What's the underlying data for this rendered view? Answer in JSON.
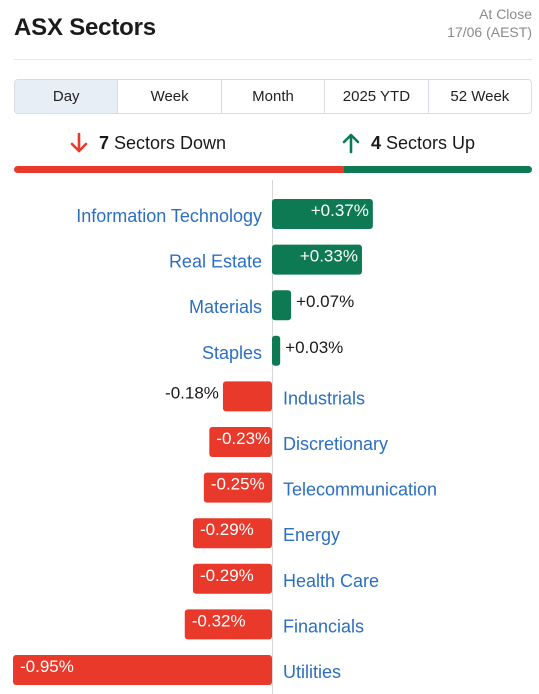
{
  "header": {
    "title": "ASX Sectors",
    "status": "At Close",
    "timestamp": "17/06 (AEST)"
  },
  "tabs": [
    {
      "label": "Day",
      "active": true
    },
    {
      "label": "Week",
      "active": false
    },
    {
      "label": "Month",
      "active": false
    },
    {
      "label": "2025 YTD",
      "active": false
    },
    {
      "label": "52 Week",
      "active": false
    }
  ],
  "summary": {
    "down_count": "7",
    "down_label": "Sectors Down",
    "up_count": "4",
    "up_label": "Sectors Up",
    "down_icon": "arrow-down-icon",
    "up_icon": "arrow-up-icon"
  },
  "colors": {
    "up": "#0d7a54",
    "down": "#e8392b",
    "label": "#2b6fc2"
  },
  "chart_data": {
    "type": "bar",
    "orientation": "horizontal-diverging",
    "unit": "%",
    "categories": [
      "Information Technology",
      "Real Estate",
      "Materials",
      "Staples",
      "Industrials",
      "Discretionary",
      "Telecommunication",
      "Energy",
      "Health Care",
      "Financials",
      "Utilities"
    ],
    "values": [
      0.37,
      0.33,
      0.07,
      0.03,
      -0.18,
      -0.23,
      -0.25,
      -0.29,
      -0.29,
      -0.32,
      -0.95
    ],
    "value_labels": [
      "+0.37%",
      "+0.33%",
      "+0.07%",
      "+0.03%",
      "-0.18%",
      "-0.23%",
      "-0.25%",
      "-0.29%",
      "-0.29%",
      "-0.32%",
      "-0.95%"
    ]
  }
}
